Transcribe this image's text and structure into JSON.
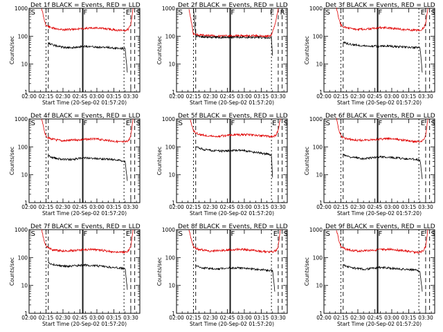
{
  "chart_data": {
    "type": "line",
    "x_tick_labels": [
      "02:00",
      "02:15",
      "02:30",
      "02:45",
      "03:00",
      "03:15",
      "03:30"
    ],
    "y_tick_labels": [
      "1",
      "10",
      "100",
      "1000"
    ],
    "yscale": "log",
    "ylim": [
      1,
      1000
    ],
    "xlim_minutes_after_0200": [
      0,
      98
    ],
    "xlabel": "Start Time (20-Sep-02 01:57:20)",
    "ylabel": "Counts/sec",
    "series_colors": {
      "events": "#000000",
      "lld": "#e00000"
    },
    "panels": [
      {
        "title": "Det 1f BLACK = Events, RED = LLD",
        "markers": [
          {
            "label": "S",
            "x": 1
          },
          {
            "label": "F",
            "x": 47.5
          },
          {
            "label": "E",
            "x": 85
          },
          {
            "label": "S",
            "x": 94
          }
        ],
        "events": {
          "x": [
            17,
            20,
            25,
            30,
            35,
            40,
            45,
            50,
            55,
            60,
            65,
            70,
            75,
            80,
            85,
            87
          ],
          "y": [
            60,
            50,
            44,
            40,
            38,
            40,
            42,
            44,
            42,
            41,
            40,
            39,
            38,
            37,
            35,
            5
          ]
        },
        "lld": {
          "x": [
            11,
            12,
            13,
            14,
            15,
            17,
            20,
            25,
            30,
            35,
            40,
            45,
            50,
            55,
            60,
            65,
            70,
            75,
            80,
            85,
            88,
            90,
            91,
            92
          ],
          "y": [
            1000,
            700,
            450,
            320,
            250,
            220,
            200,
            185,
            170,
            175,
            180,
            185,
            190,
            195,
            200,
            190,
            180,
            170,
            160,
            160,
            180,
            250,
            500,
            1000
          ]
        }
      },
      {
        "title": "Det 2f BLACK = Events, RED = LLD",
        "markers": [
          {
            "label": "S",
            "x": 1
          },
          {
            "label": "F",
            "x": 47.5
          },
          {
            "label": "E",
            "x": 82
          },
          {
            "label": "R",
            "x": 91
          }
        ],
        "events": {
          "x": [
            15,
            17,
            20,
            30,
            40,
            50,
            60,
            70,
            80,
            84,
            85
          ],
          "y": [
            1000,
            100,
            95,
            92,
            90,
            91,
            92,
            90,
            88,
            85,
            20
          ]
        },
        "lld": {
          "x": [
            11,
            12,
            13,
            14,
            15,
            20,
            30,
            40,
            50,
            60,
            70,
            80,
            84,
            87,
            89,
            90
          ],
          "y": [
            1000,
            600,
            350,
            200,
            120,
            110,
            105,
            100,
            102,
            104,
            103,
            100,
            110,
            250,
            600,
            1000
          ]
        }
      },
      {
        "title": "Det 3f BLACK = Events, RED = LLD",
        "markers": [
          {
            "label": "S",
            "x": 1
          },
          {
            "label": "F",
            "x": 47.5
          },
          {
            "label": "E",
            "x": 85
          },
          {
            "label": "S",
            "x": 94
          }
        ],
        "events": {
          "x": [
            17,
            20,
            25,
            30,
            35,
            40,
            45,
            50,
            55,
            60,
            65,
            70,
            75,
            80,
            85,
            87
          ],
          "y": [
            60,
            55,
            50,
            48,
            46,
            45,
            44,
            43,
            44,
            43,
            42,
            41,
            40,
            39,
            38,
            5
          ]
        },
        "lld": {
          "x": [
            11,
            12,
            13,
            14,
            15,
            17,
            20,
            25,
            30,
            35,
            40,
            45,
            50,
            55,
            60,
            65,
            70,
            75,
            80,
            85,
            88,
            90,
            91,
            92
          ],
          "y": [
            1000,
            700,
            450,
            320,
            250,
            220,
            200,
            185,
            175,
            180,
            185,
            190,
            200,
            200,
            195,
            185,
            175,
            170,
            165,
            165,
            190,
            280,
            550,
            1000
          ]
        }
      },
      {
        "title": "Det 4f BLACK = Events, RED = LLD",
        "markers": [
          {
            "label": "S",
            "x": 1
          },
          {
            "label": "F",
            "x": 47.5
          },
          {
            "label": "E",
            "x": 85
          },
          {
            "label": "S",
            "x": 94
          }
        ],
        "events": {
          "x": [
            17,
            20,
            25,
            30,
            35,
            40,
            45,
            50,
            55,
            60,
            65,
            70,
            75,
            80,
            85,
            87
          ],
          "y": [
            50,
            42,
            38,
            36,
            35,
            36,
            38,
            40,
            40,
            38,
            37,
            36,
            35,
            33,
            30,
            6
          ]
        },
        "lld": {
          "x": [
            11,
            12,
            13,
            14,
            15,
            17,
            20,
            25,
            30,
            35,
            40,
            45,
            50,
            55,
            60,
            65,
            70,
            75,
            80,
            85,
            88,
            90,
            91,
            92
          ],
          "y": [
            1000,
            700,
            450,
            320,
            250,
            210,
            190,
            175,
            165,
            170,
            175,
            180,
            185,
            190,
            190,
            180,
            170,
            160,
            150,
            150,
            170,
            240,
            500,
            1000
          ]
        }
      },
      {
        "title": "Det 5f BLACK = Events, RED = LLD",
        "markers": [
          {
            "label": "S",
            "x": 1
          },
          {
            "label": "F",
            "x": 47.5
          },
          {
            "label": "E",
            "x": 84
          },
          {
            "label": "S",
            "x": 94
          }
        ],
        "events": {
          "x": [
            17,
            20,
            25,
            30,
            35,
            40,
            45,
            50,
            55,
            60,
            65,
            70,
            75,
            80,
            84,
            85
          ],
          "y": [
            100,
            90,
            80,
            75,
            72,
            70,
            72,
            74,
            75,
            72,
            68,
            64,
            60,
            55,
            50,
            8
          ]
        },
        "lld": {
          "x": [
            12,
            13,
            14,
            15,
            17,
            20,
            25,
            30,
            35,
            40,
            45,
            50,
            55,
            60,
            65,
            70,
            75,
            80,
            85,
            88,
            90,
            91,
            92
          ],
          "y": [
            1000,
            700,
            500,
            380,
            320,
            280,
            260,
            250,
            240,
            245,
            255,
            265,
            270,
            275,
            270,
            260,
            250,
            240,
            235,
            260,
            400,
            700,
            1000
          ]
        }
      },
      {
        "title": "Det 6f BLACK = Events, RED = LLD",
        "markers": [
          {
            "label": "S",
            "x": 1
          },
          {
            "label": "F",
            "x": 47.5
          },
          {
            "label": "E",
            "x": 85
          },
          {
            "label": "S",
            "x": 94
          }
        ],
        "events": {
          "x": [
            17,
            20,
            25,
            30,
            35,
            40,
            45,
            50,
            55,
            60,
            65,
            70,
            75,
            80,
            85,
            87
          ],
          "y": [
            55,
            48,
            42,
            40,
            38,
            40,
            42,
            44,
            43,
            41,
            40,
            38,
            37,
            36,
            34,
            7
          ]
        },
        "lld": {
          "x": [
            11,
            12,
            13,
            14,
            15,
            17,
            20,
            25,
            30,
            35,
            40,
            45,
            50,
            55,
            60,
            65,
            70,
            75,
            80,
            85,
            88,
            90,
            91,
            92
          ],
          "y": [
            1000,
            700,
            450,
            320,
            250,
            215,
            195,
            180,
            170,
            175,
            180,
            185,
            190,
            195,
            195,
            185,
            175,
            165,
            155,
            155,
            175,
            250,
            520,
            1000
          ]
        }
      },
      {
        "title": "Det 7f BLACK = Events, RED = LLD",
        "markers": [
          {
            "label": "S",
            "x": 1
          },
          {
            "label": "F",
            "x": 47.5
          },
          {
            "label": "E",
            "x": 85
          },
          {
            "label": "S",
            "x": 94
          }
        ],
        "events": {
          "x": [
            17,
            20,
            25,
            30,
            35,
            40,
            45,
            50,
            55,
            60,
            65,
            70,
            75,
            80,
            85,
            87
          ],
          "y": [
            65,
            58,
            52,
            50,
            48,
            50,
            52,
            54,
            52,
            50,
            48,
            46,
            44,
            42,
            40,
            7
          ]
        },
        "lld": {
          "x": [
            11,
            12,
            13,
            14,
            15,
            17,
            20,
            25,
            30,
            35,
            40,
            45,
            50,
            55,
            60,
            65,
            70,
            75,
            80,
            85,
            88,
            90,
            91,
            92
          ],
          "y": [
            1000,
            700,
            450,
            320,
            250,
            220,
            195,
            180,
            170,
            175,
            180,
            185,
            190,
            195,
            190,
            180,
            170,
            160,
            155,
            155,
            175,
            250,
            520,
            1000
          ]
        }
      },
      {
        "title": "Det 8f BLACK = Events, RED = LLD",
        "markers": [
          {
            "label": "S",
            "x": 1
          },
          {
            "label": "F",
            "x": 47.5
          },
          {
            "label": "E",
            "x": 85
          },
          {
            "label": "S",
            "x": 94
          }
        ],
        "events": {
          "x": [
            17,
            20,
            25,
            30,
            35,
            40,
            45,
            50,
            55,
            60,
            65,
            70,
            75,
            80,
            85,
            87
          ],
          "y": [
            50,
            45,
            42,
            40,
            38,
            40,
            42,
            43,
            42,
            40,
            39,
            38,
            37,
            35,
            33,
            6
          ]
        },
        "lld": {
          "x": [
            11,
            12,
            13,
            14,
            15,
            17,
            20,
            25,
            30,
            35,
            40,
            45,
            50,
            55,
            60,
            65,
            70,
            75,
            80,
            85,
            88,
            90,
            91,
            92
          ],
          "y": [
            1000,
            700,
            450,
            320,
            250,
            215,
            195,
            180,
            170,
            175,
            180,
            185,
            190,
            195,
            195,
            185,
            175,
            165,
            160,
            160,
            180,
            250,
            520,
            1000
          ]
        }
      },
      {
        "title": "Det 9f BLACK = Events, RED = LLD",
        "markers": [
          {
            "label": "S",
            "x": 1
          },
          {
            "label": "F",
            "x": 47.5
          },
          {
            "label": "E",
            "x": 85
          },
          {
            "label": "S",
            "x": 94
          }
        ],
        "events": {
          "x": [
            17,
            20,
            25,
            30,
            35,
            40,
            45,
            50,
            55,
            60,
            65,
            70,
            75,
            80,
            85,
            87
          ],
          "y": [
            55,
            48,
            43,
            40,
            38,
            40,
            42,
            44,
            43,
            41,
            40,
            38,
            37,
            36,
            33,
            6
          ]
        },
        "lld": {
          "x": [
            11,
            12,
            13,
            14,
            15,
            17,
            20,
            25,
            30,
            35,
            40,
            45,
            50,
            55,
            60,
            65,
            70,
            75,
            80,
            85,
            88,
            90,
            91,
            92
          ],
          "y": [
            1000,
            700,
            450,
            320,
            250,
            215,
            195,
            180,
            170,
            175,
            180,
            185,
            190,
            195,
            195,
            185,
            175,
            165,
            155,
            155,
            175,
            250,
            520,
            1000
          ]
        }
      }
    ]
  }
}
